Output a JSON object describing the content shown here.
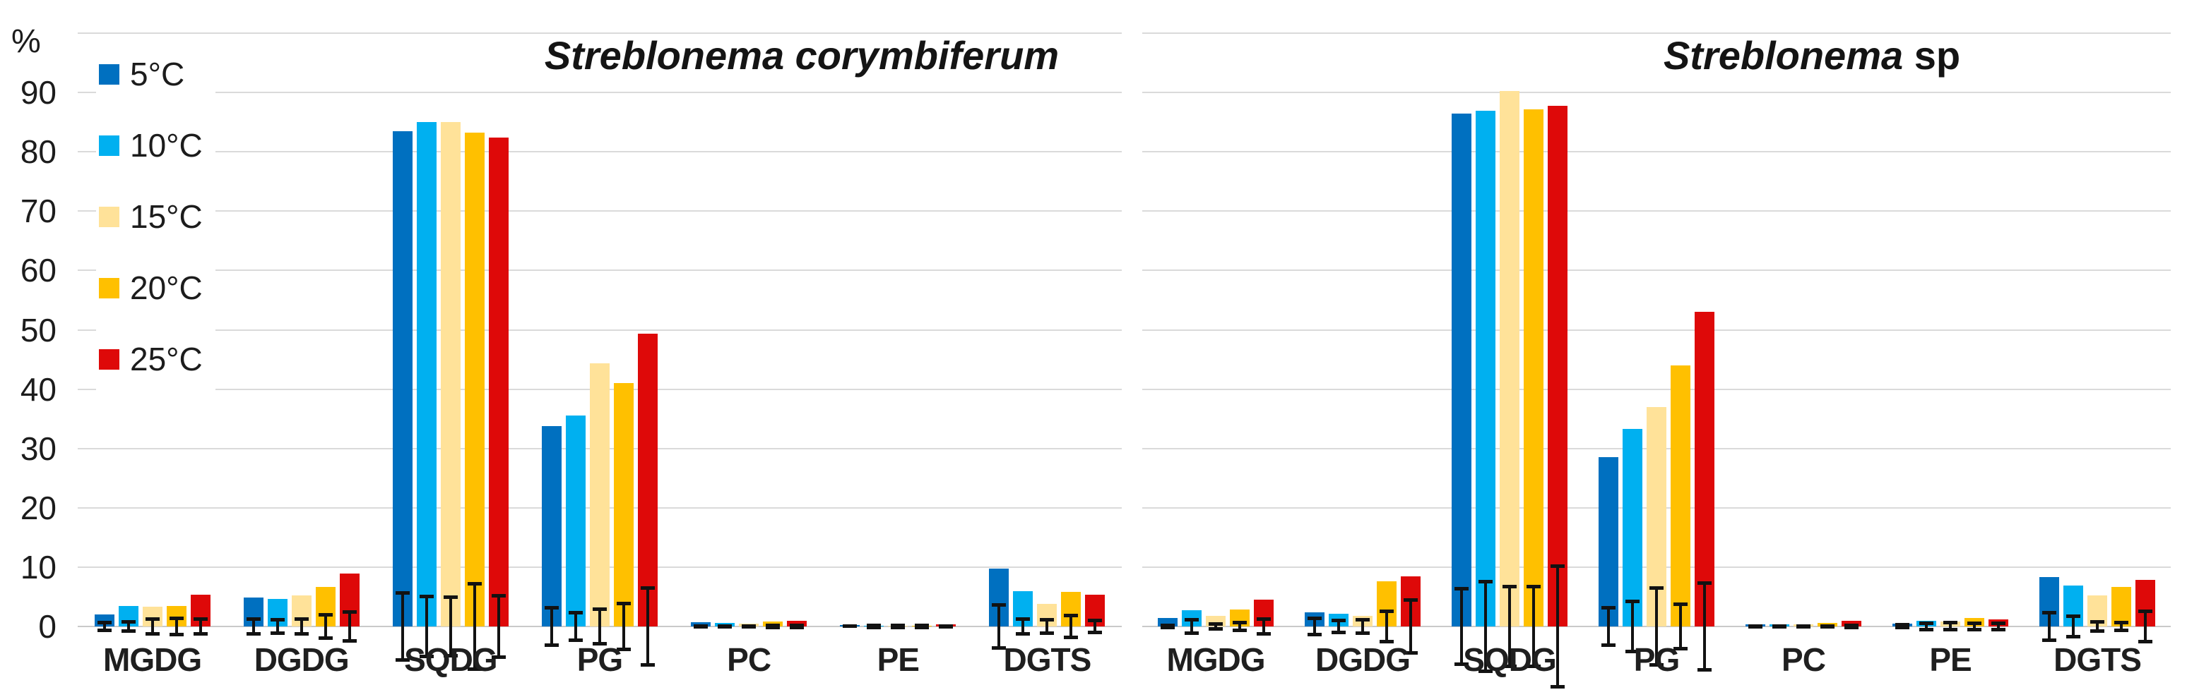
{
  "y_axis": {
    "title": "%",
    "tick_values": [
      0,
      10,
      20,
      30,
      40,
      50,
      60,
      70,
      80,
      90
    ],
    "max": 100
  },
  "legend": {
    "items": [
      {
        "label": "5°C",
        "color": "#0070C0"
      },
      {
        "label": "10°C",
        "color": "#00B0F0"
      },
      {
        "label": "15°C",
        "color": "#FFE299"
      },
      {
        "label": "20°C",
        "color": "#FFC000"
      },
      {
        "label": "25°C",
        "color": "#DE0909"
      }
    ]
  },
  "chart_data": [
    {
      "type": "bar",
      "panel": "left",
      "title_italic": "Streblonema corymbiferum",
      "title_regular": "",
      "categories": [
        "MGDG",
        "DGDG",
        "SQDG",
        "PG",
        "PC",
        "PE",
        "DGTS"
      ],
      "ylabel": "%",
      "ylim": [
        0,
        100
      ],
      "grid": true,
      "legend_position": "upper-left",
      "series": [
        {
          "name": "5°C",
          "color": "#0070C0",
          "values": [
            2.0,
            4.9,
            83.5,
            33.8,
            0.7,
            0.2,
            9.7
          ],
          "errors": [
            1.0,
            1.5,
            6.0,
            3.5,
            0.4,
            0.3,
            3.9
          ]
        },
        {
          "name": "10°C",
          "color": "#00B0F0",
          "values": [
            3.4,
            4.6,
            85.0,
            35.5,
            0.6,
            0.1,
            6.0
          ],
          "errors": [
            1.1,
            1.4,
            5.3,
            2.6,
            0.4,
            0.1,
            1.5
          ]
        },
        {
          "name": "15°C",
          "color": "#FFE299",
          "values": [
            3.3,
            5.2,
            85.0,
            44.3,
            0.5,
            0.1,
            3.8
          ],
          "errors": [
            1.5,
            1.5,
            5.2,
            3.2,
            0.4,
            0.1,
            1.4
          ]
        },
        {
          "name": "20°C",
          "color": "#FFC000",
          "values": [
            3.4,
            6.7,
            83.2,
            41.0,
            0.8,
            0.1,
            5.8
          ],
          "errors": [
            1.7,
            2.3,
            7.5,
            4.2,
            0.5,
            0.1,
            2.1
          ]
        },
        {
          "name": "25°C",
          "color": "#DE0909",
          "values": [
            5.3,
            8.9,
            82.4,
            49.4,
            0.9,
            0.3,
            5.4
          ],
          "errors": [
            1.5,
            2.7,
            5.5,
            6.8,
            0.5,
            0.3,
            1.3
          ]
        }
      ]
    },
    {
      "type": "bar",
      "panel": "right",
      "title_italic": "Streblonema",
      "title_regular": " sp",
      "categories": [
        "MGDG",
        "DGDG",
        "SQDG",
        "PG",
        "PC",
        "PE",
        "DGTS"
      ],
      "ylim": [
        0,
        100
      ],
      "grid": true,
      "series": [
        {
          "name": "5°C",
          "color": "#0070C0",
          "values": [
            1.4,
            2.4,
            86.5,
            28.5,
            0.4,
            0.5,
            8.3
          ],
          "errors": [
            0.5,
            1.7,
            6.7,
            3.4,
            0.3,
            0.6,
            2.6
          ]
        },
        {
          "name": "10°C",
          "color": "#00B0F0",
          "values": [
            2.7,
            2.1,
            86.9,
            33.3,
            0.4,
            0.9,
            6.9
          ],
          "errors": [
            1.4,
            1.3,
            7.9,
            4.5,
            0.2,
            0.8,
            2.0
          ]
        },
        {
          "name": "15°C",
          "color": "#FFE299",
          "values": [
            1.8,
            1.8,
            90.3,
            37.0,
            0.4,
            0.8,
            5.2
          ],
          "errors": [
            0.7,
            1.4,
            7.0,
            6.8,
            0.3,
            0.9,
            1.1
          ]
        },
        {
          "name": "20°C",
          "color": "#FFC000",
          "values": [
            2.8,
            7.6,
            87.2,
            44.0,
            0.6,
            1.4,
            6.7
          ],
          "errors": [
            1.0,
            2.8,
            7.0,
            4.1,
            0.3,
            0.8,
            1.0
          ]
        },
        {
          "name": "25°C",
          "color": "#DE0909",
          "values": [
            4.5,
            8.4,
            87.7,
            53.0,
            0.9,
            1.2,
            7.8
          ],
          "errors": [
            1.5,
            4.8,
            10.5,
            7.6,
            0.5,
            0.8,
            2.8
          ]
        }
      ]
    }
  ]
}
